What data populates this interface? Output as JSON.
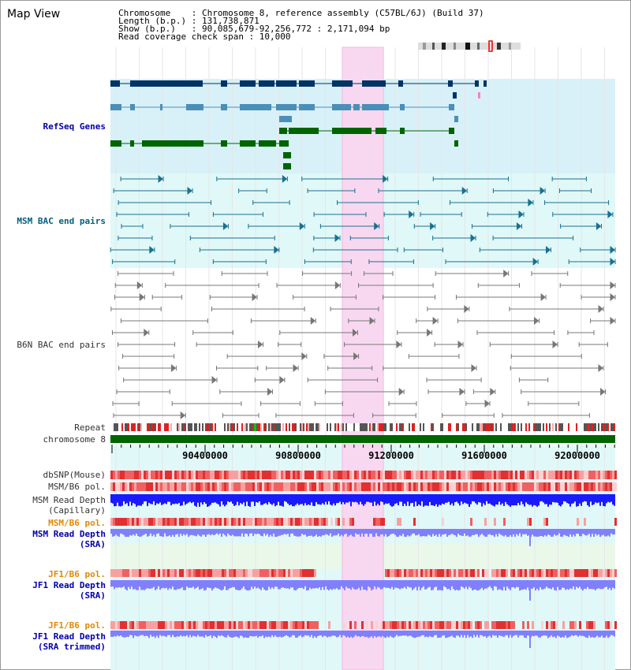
{
  "header": {
    "title": "Map View",
    "info_lines": [
      "Chromosome    : Chromosome 8, reference assembly (C57BL/6J) (Build 37)",
      "Length (b.p.) : 131,738,871",
      "Show (b.p.)   : 90,085,679-92,256,772 : 2,171,094 bp",
      "Read coverage check span : 10,000"
    ]
  },
  "tracks": {
    "refseq": "RefSeq Genes",
    "msm_bac": "MSM BAC end pairs",
    "b6n_bac": "B6N BAC end pairs",
    "repeat": "Repeat",
    "chromosome": "chromosome 8",
    "dbsnp": "dbSNP(Mouse)",
    "msm_b6_pol_1": "MSM/B6 pol.",
    "msm_depth_cap": [
      "MSM Read Depth",
      "(Capillary)"
    ],
    "msm_b6_pol_2": "MSM/B6 pol.",
    "msm_depth_sra": [
      "MSM Read Depth",
      "(SRA)"
    ],
    "jf1_b6_pol_1": "JF1/B6 pol.",
    "jf1_depth_sra": [
      "JF1 Read Depth",
      "(SRA)"
    ],
    "jf1_b6_pol_2": "JF1/B6 pol.",
    "jf1_depth_trim": [
      "JF1 Read Depth",
      "(SRA trimmed)"
    ]
  },
  "axis": {
    "ticks": [
      "90400000",
      "90800000",
      "91200000",
      "91600000",
      "92000000"
    ]
  },
  "colors": {
    "refseq_dark": "#003366",
    "refseq_mid": "#4a8fb8",
    "refseq_green": "#006400",
    "highlight": "#f8d8f0",
    "chromosome_bar": "#006400",
    "depth_blue": "#1a1aff",
    "depth_light": "#8080ff"
  }
}
